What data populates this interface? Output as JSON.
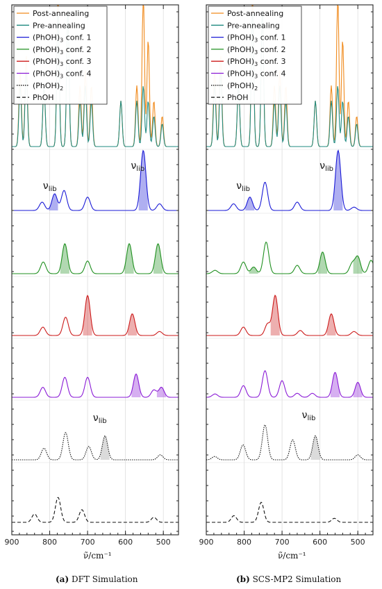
{
  "legend": {
    "entries": [
      {
        "label": "Post-annealing",
        "color": "#f08a1c",
        "dash": "solid"
      },
      {
        "label": "Pre-annealing",
        "color": "#1f8a80",
        "dash": "solid"
      },
      {
        "label": "(PhOH)3 conf. 1",
        "base": "(PhOH)",
        "sub": "3",
        "rest": " conf. 1",
        "color": "#1a1ad6",
        "dash": "solid"
      },
      {
        "label": "(PhOH)3 conf. 2",
        "base": "(PhOH)",
        "sub": "3",
        "rest": " conf. 2",
        "color": "#1f8f1f",
        "dash": "solid"
      },
      {
        "label": "(PhOH)3 conf. 3",
        "base": "(PhOH)",
        "sub": "3",
        "rest": " conf. 3",
        "color": "#cc1a1a",
        "dash": "solid"
      },
      {
        "label": "(PhOH)3 conf. 4",
        "base": "(PhOH)",
        "sub": "3",
        "rest": " conf. 4",
        "color": "#8a1ad6",
        "dash": "solid"
      },
      {
        "label": "(PhOH)2",
        "base": "(PhOH)",
        "sub": "2",
        "rest": "",
        "color": "#111111",
        "dash": "dotted"
      },
      {
        "label": "PhOH",
        "color": "#111111",
        "dash": "dashed"
      }
    ]
  },
  "axis": {
    "xlabel": "ν̃/cm⁻¹",
    "xlim": [
      900,
      460
    ],
    "ticks": [
      900,
      800,
      700,
      600,
      500
    ],
    "tick_labels": [
      "900",
      "800",
      "700",
      "600",
      "500"
    ]
  },
  "annotation_label": "ν",
  "annotation_sub": "lib",
  "captions": {
    "a": {
      "tag": "(a)",
      "text": " DFT Simulation"
    },
    "b": {
      "tag": "(b)",
      "text": " SCS-MP2 Simulation"
    }
  },
  "chart_data": [
    {
      "type": "line",
      "panel": "a",
      "xlabel": "ν̃/cm⁻¹",
      "xlim": [
        900,
        460
      ],
      "experimental": [
        {
          "name": "Post-annealing",
          "peaks": [
            [
              878,
              5
            ],
            [
              862,
              6
            ],
            [
              815,
              4
            ],
            [
              778,
              10
            ],
            [
              752,
              9
            ],
            [
              720,
              4
            ],
            [
              706,
              5
            ],
            [
              690,
              4
            ],
            [
              612,
              3
            ],
            [
              570,
              4
            ],
            [
              553,
              10
            ],
            [
              540,
              7
            ],
            [
              525,
              3
            ],
            [
              503,
              2
            ]
          ]
        },
        {
          "name": "Pre-annealing",
          "peaks": [
            [
              878,
              4
            ],
            [
              862,
              5
            ],
            [
              815,
              4
            ],
            [
              778,
              9
            ],
            [
              752,
              9
            ],
            [
              720,
              3
            ],
            [
              706,
              4
            ],
            [
              690,
              3
            ],
            [
              612,
              3
            ],
            [
              570,
              3
            ],
            [
              553,
              4
            ],
            [
              540,
              3
            ],
            [
              525,
              2
            ],
            [
              503,
              1.5
            ]
          ]
        }
      ],
      "series": [
        {
          "name": "(PhOH)3 conf. 1",
          "peaks": [
            [
              820,
              0.25
            ],
            [
              787,
              0.5
            ],
            [
              762,
              0.6
            ],
            [
              700,
              0.4
            ],
            [
              553,
              1.8
            ],
            [
              510,
              0.2
            ]
          ],
          "nu_lib": [
            790,
            553
          ]
        },
        {
          "name": "(PhOH)3 conf. 2",
          "peaks": [
            [
              817,
              0.35
            ],
            [
              760,
              0.9
            ],
            [
              700,
              0.38
            ],
            [
              590,
              0.9
            ],
            [
              514,
              0.9
            ]
          ],
          "nu_lib": [
            760,
            590,
            514
          ]
        },
        {
          "name": "(PhOH)3 conf. 3",
          "peaks": [
            [
              818,
              0.25
            ],
            [
              758,
              0.55
            ],
            [
              700,
              1.2
            ],
            [
              582,
              0.65
            ],
            [
              510,
              0.12
            ]
          ],
          "nu_lib": [
            700,
            582
          ]
        },
        {
          "name": "(PhOH)3 conf. 4",
          "peaks": [
            [
              818,
              0.3
            ],
            [
              760,
              0.6
            ],
            [
              700,
              0.6
            ],
            [
              572,
              0.7
            ],
            [
              525,
              0.22
            ],
            [
              505,
              0.3
            ]
          ],
          "nu_lib": [
            572,
            505
          ]
        },
        {
          "name": "(PhOH)2",
          "peaks": [
            [
              815,
              0.35
            ],
            [
              758,
              0.82
            ],
            [
              697,
              0.4
            ],
            [
              654,
              0.72
            ],
            [
              508,
              0.15
            ]
          ],
          "nu_lib": [
            654
          ]
        },
        {
          "name": "PhOH",
          "peaks": [
            [
              840,
              0.25
            ],
            [
              778,
              0.75
            ],
            [
              715,
              0.38
            ],
            [
              525,
              0.15
            ]
          ]
        }
      ]
    },
    {
      "type": "line",
      "panel": "b",
      "xlabel": "ν̃/cm⁻¹",
      "xlim": [
        900,
        460
      ],
      "experimental": [
        {
          "name": "Post-annealing",
          "peaks": [
            [
              878,
              5
            ],
            [
              862,
              6
            ],
            [
              815,
              4
            ],
            [
              778,
              10
            ],
            [
              752,
              9
            ],
            [
              720,
              4
            ],
            [
              706,
              5
            ],
            [
              690,
              4
            ],
            [
              612,
              3
            ],
            [
              570,
              4
            ],
            [
              553,
              10
            ],
            [
              540,
              7
            ],
            [
              525,
              3
            ],
            [
              503,
              2
            ]
          ]
        },
        {
          "name": "Pre-annealing",
          "peaks": [
            [
              878,
              4
            ],
            [
              862,
              5
            ],
            [
              815,
              4
            ],
            [
              778,
              9
            ],
            [
              752,
              9
            ],
            [
              720,
              3
            ],
            [
              706,
              4
            ],
            [
              690,
              3
            ],
            [
              612,
              3
            ],
            [
              570,
              3
            ],
            [
              553,
              4
            ],
            [
              540,
              3
            ],
            [
              525,
              2
            ],
            [
              503,
              1.5
            ]
          ]
        }
      ],
      "series": [
        {
          "name": "(PhOH)3 conf. 1",
          "peaks": [
            [
              828,
              0.2
            ],
            [
              785,
              0.4
            ],
            [
              745,
              0.85
            ],
            [
              660,
              0.25
            ],
            [
              552,
              1.8
            ],
            [
              510,
              0.1
            ]
          ],
          "nu_lib": [
            785,
            552
          ]
        },
        {
          "name": "(PhOH)3 conf. 2",
          "peaks": [
            [
              877,
              0.1
            ],
            [
              802,
              0.35
            ],
            [
              775,
              0.2
            ],
            [
              742,
              0.95
            ],
            [
              660,
              0.25
            ],
            [
              593,
              0.65
            ],
            [
              515,
              0.3
            ],
            [
              500,
              0.5
            ],
            [
              465,
              0.4
            ]
          ],
          "nu_lib": [
            775,
            593,
            500
          ]
        },
        {
          "name": "(PhOH)3 conf. 3",
          "peaks": [
            [
              802,
              0.25
            ],
            [
              738,
              0.35
            ],
            [
              718,
              1.2
            ],
            [
              652,
              0.15
            ],
            [
              570,
              0.65
            ],
            [
              510,
              0.12
            ]
          ],
          "nu_lib": [
            718,
            570
          ]
        },
        {
          "name": "(PhOH)3 conf. 4",
          "peaks": [
            [
              877,
              0.1
            ],
            [
              802,
              0.35
            ],
            [
              745,
              0.8
            ],
            [
              700,
              0.5
            ],
            [
              660,
              0.12
            ],
            [
              620,
              0.12
            ],
            [
              560,
              0.75
            ],
            [
              500,
              0.45
            ]
          ],
          "nu_lib": [
            560,
            500
          ]
        },
        {
          "name": "(PhOH)2",
          "peaks": [
            [
              878,
              0.1
            ],
            [
              803,
              0.45
            ],
            [
              745,
              1.05
            ],
            [
              672,
              0.6
            ],
            [
              612,
              0.72
            ],
            [
              500,
              0.15
            ]
          ],
          "nu_lib": [
            612
          ]
        },
        {
          "name": "PhOH",
          "peaks": [
            [
              827,
              0.2
            ],
            [
              755,
              0.6
            ],
            [
              562,
              0.12
            ]
          ]
        }
      ]
    }
  ]
}
